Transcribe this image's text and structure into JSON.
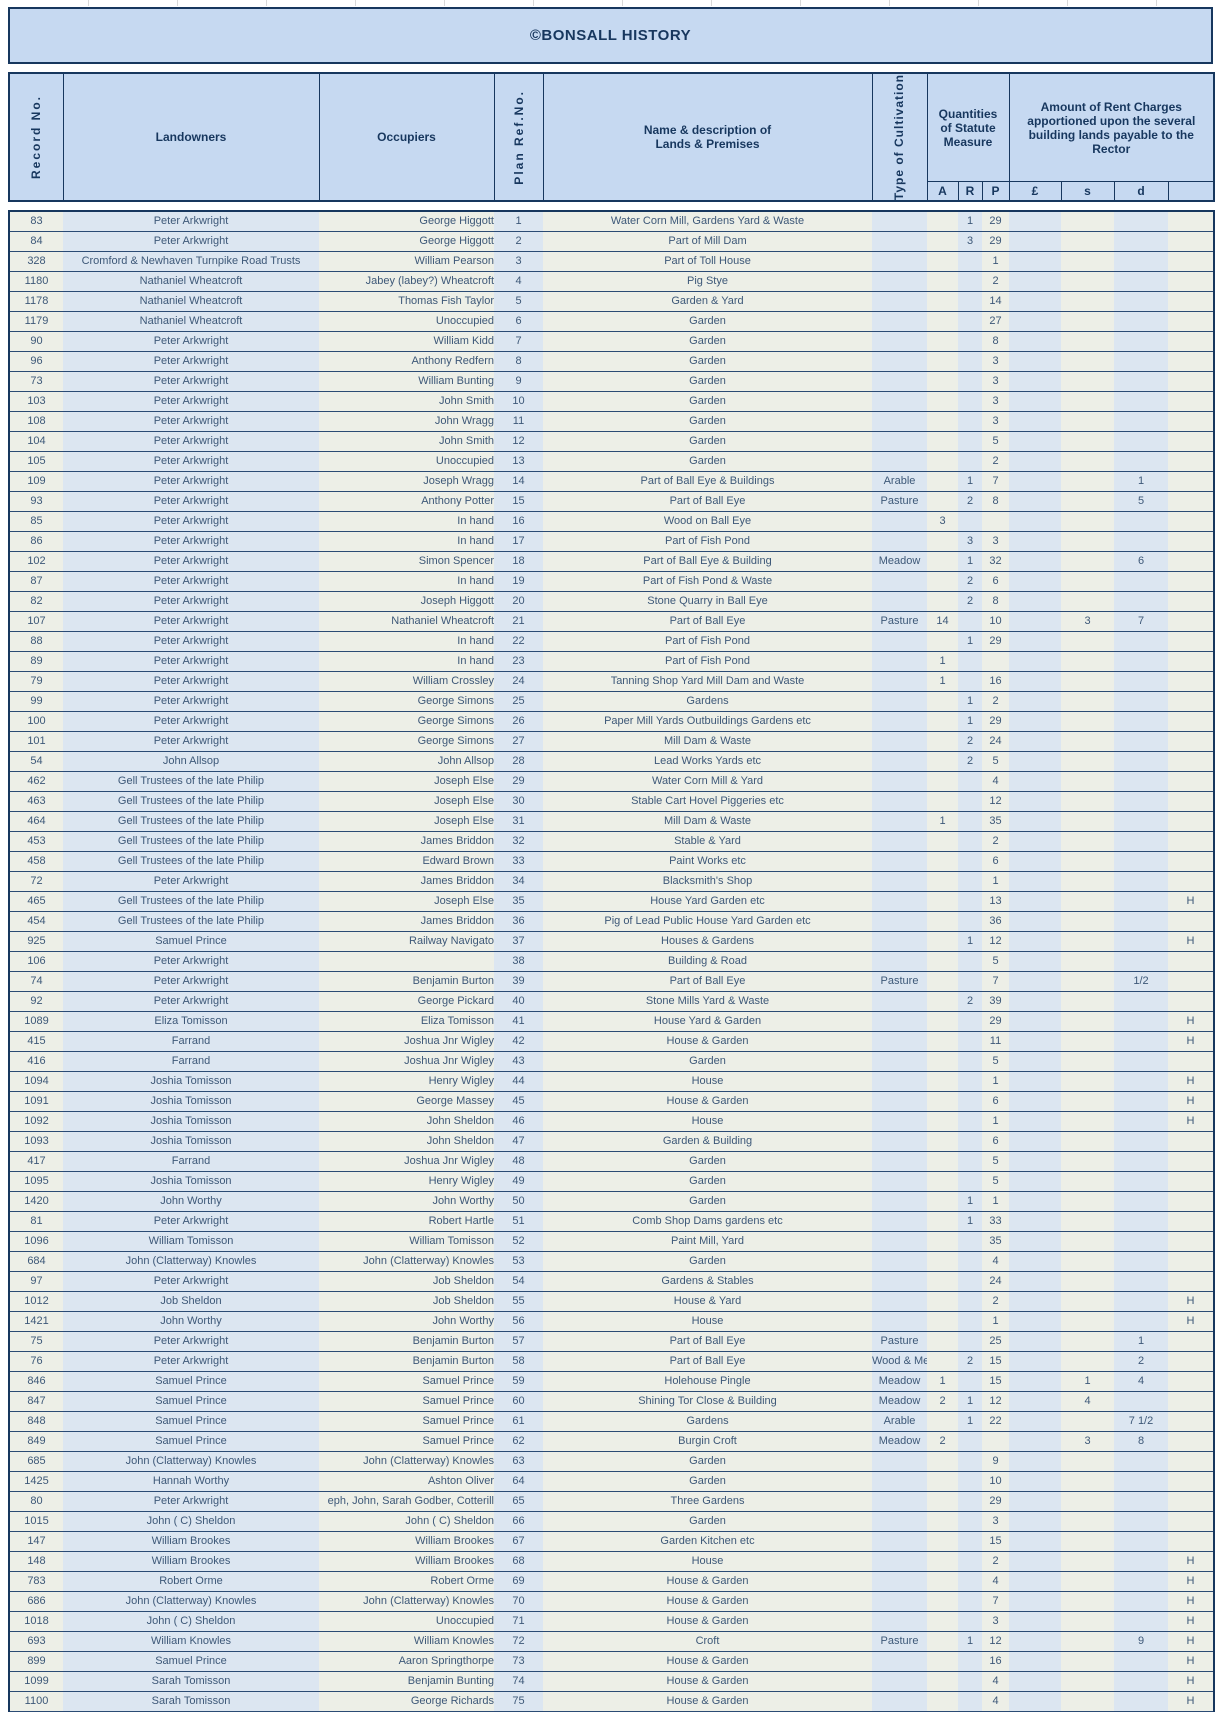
{
  "title": "©BONSALL HISTORY",
  "colors": {
    "banner_bg": "#C6D9F1",
    "band_blue": "#DCE6F1",
    "band_cream": "#EDEFE7",
    "border_navy": "#17375E",
    "body_text": "#3D5878"
  },
  "header": {
    "record": "Record No.",
    "landowners": "Landowners",
    "occupiers": "Occupiers",
    "plan": "Plan Ref.No.",
    "description_line1": "Name & description of",
    "description_line2": "Lands & Premises",
    "cultivation": "Type of Cultivation",
    "quantities": "Quantities of Statute Measure",
    "rent": "Amount of Rent Charges apportioned upon the several building lands payable to the Rector",
    "sub": [
      "A",
      "R",
      "P",
      "£",
      "s",
      "d",
      ""
    ]
  },
  "table": {
    "fields": [
      "record",
      "landowner",
      "occupier",
      "plan",
      "description",
      "cultivation",
      "a",
      "r",
      "p",
      "pounds",
      "shillings",
      "pence",
      "flag"
    ],
    "rows": [
      [
        "83",
        "Peter Arkwright",
        "George Higgott",
        "1",
        "Water Corn Mill, Gardens Yard & Waste",
        "",
        "",
        "1",
        "29",
        "",
        "",
        "",
        ""
      ],
      [
        "84",
        "Peter Arkwright",
        "George Higgott",
        "2",
        "Part of Mill Dam",
        "",
        "",
        "3",
        "29",
        "",
        "",
        "",
        ""
      ],
      [
        "328",
        "Cromford & Newhaven Turnpike Road Trusts",
        "William Pearson",
        "3",
        "Part of Toll House",
        "",
        "",
        "",
        "1",
        "",
        "",
        "",
        ""
      ],
      [
        "1180",
        "Nathaniel Wheatcroft",
        "Jabey (labey?) Wheatcroft",
        "4",
        "Pig Stye",
        "",
        "",
        "",
        "2",
        "",
        "",
        "",
        ""
      ],
      [
        "1178",
        "Nathaniel Wheatcroft",
        "Thomas Fish Taylor",
        "5",
        "Garden & Yard",
        "",
        "",
        "",
        "14",
        "",
        "",
        "",
        ""
      ],
      [
        "1179",
        "Nathaniel Wheatcroft",
        "Unoccupied",
        "6",
        "Garden",
        "",
        "",
        "",
        "27",
        "",
        "",
        "",
        ""
      ],
      [
        "90",
        "Peter Arkwright",
        "William Kidd",
        "7",
        "Garden",
        "",
        "",
        "",
        "8",
        "",
        "",
        "",
        ""
      ],
      [
        "96",
        "Peter Arkwright",
        "Anthony Redfern",
        "8",
        "Garden",
        "",
        "",
        "",
        "3",
        "",
        "",
        "",
        ""
      ],
      [
        "73",
        "Peter Arkwright",
        "William Bunting",
        "9",
        "Garden",
        "",
        "",
        "",
        "3",
        "",
        "",
        "",
        ""
      ],
      [
        "103",
        "Peter Arkwright",
        "John Smith",
        "10",
        "Garden",
        "",
        "",
        "",
        "3",
        "",
        "",
        "",
        ""
      ],
      [
        "108",
        "Peter Arkwright",
        "John Wragg",
        "11",
        "Garden",
        "",
        "",
        "",
        "3",
        "",
        "",
        "",
        ""
      ],
      [
        "104",
        "Peter Arkwright",
        "John Smith",
        "12",
        "Garden",
        "",
        "",
        "",
        "5",
        "",
        "",
        "",
        ""
      ],
      [
        "105",
        "Peter Arkwright",
        "Unoccupied",
        "13",
        "Garden",
        "",
        "",
        "",
        "2",
        "",
        "",
        "",
        ""
      ],
      [
        "109",
        "Peter Arkwright",
        "Joseph Wragg",
        "14",
        "Part of Ball Eye & Buildings",
        "Arable",
        "",
        "1",
        "7",
        "",
        "",
        "1",
        ""
      ],
      [
        "93",
        "Peter Arkwright",
        "Anthony Potter",
        "15",
        "Part of Ball Eye",
        "Pasture",
        "",
        "2",
        "8",
        "",
        "",
        "5",
        ""
      ],
      [
        "85",
        "Peter Arkwright",
        "In hand",
        "16",
        "Wood on Ball Eye",
        "",
        "3",
        "",
        "",
        "",
        "",
        "",
        ""
      ],
      [
        "86",
        "Peter Arkwright",
        "In hand",
        "17",
        "Part of Fish Pond",
        "",
        "",
        "3",
        "3",
        "",
        "",
        "",
        ""
      ],
      [
        "102",
        "Peter Arkwright",
        "Simon Spencer",
        "18",
        "Part of Ball Eye & Building",
        "Meadow",
        "",
        "1",
        "32",
        "",
        "",
        "6",
        ""
      ],
      [
        "87",
        "Peter Arkwright",
        "In hand",
        "19",
        "Part of Fish Pond & Waste",
        "",
        "",
        "2",
        "6",
        "",
        "",
        "",
        ""
      ],
      [
        "82",
        "Peter Arkwright",
        "Joseph Higgott",
        "20",
        "Stone Quarry in Ball Eye",
        "",
        "",
        "2",
        "8",
        "",
        "",
        "",
        ""
      ],
      [
        "107",
        "Peter Arkwright",
        "Nathaniel Wheatcroft",
        "21",
        "Part of Ball Eye",
        "Pasture",
        "14",
        "",
        "10",
        "",
        "3",
        "7",
        ""
      ],
      [
        "88",
        "Peter Arkwright",
        "In hand",
        "22",
        "Part of Fish Pond",
        "",
        "",
        "1",
        "29",
        "",
        "",
        "",
        ""
      ],
      [
        "89",
        "Peter Arkwright",
        "In hand",
        "23",
        "Part of Fish Pond",
        "",
        "1",
        "",
        "",
        "",
        "",
        "",
        ""
      ],
      [
        "79",
        "Peter Arkwright",
        "William Crossley",
        "24",
        "Tanning Shop Yard Mill Dam and Waste",
        "",
        "1",
        "",
        "16",
        "",
        "",
        "",
        ""
      ],
      [
        "99",
        "Peter Arkwright",
        "George Simons",
        "25",
        "Gardens",
        "",
        "",
        "1",
        "2",
        "",
        "",
        "",
        ""
      ],
      [
        "100",
        "Peter Arkwright",
        "George Simons",
        "26",
        "Paper Mill Yards Outbuildings Gardens etc",
        "",
        "",
        "1",
        "29",
        "",
        "",
        "",
        ""
      ],
      [
        "101",
        "Peter Arkwright",
        "George Simons",
        "27",
        "Mill Dam & Waste",
        "",
        "",
        "2",
        "24",
        "",
        "",
        "",
        ""
      ],
      [
        "54",
        "John Allsop",
        "John Allsop",
        "28",
        "Lead Works Yards etc",
        "",
        "",
        "2",
        "5",
        "",
        "",
        "",
        ""
      ],
      [
        "462",
        "Gell Trustees of the late Philip",
        "Joseph Else",
        "29",
        "Water Corn Mill & Yard",
        "",
        "",
        "",
        "4",
        "",
        "",
        "",
        ""
      ],
      [
        "463",
        "Gell Trustees of the late Philip",
        "Joseph Else",
        "30",
        "Stable Cart Hovel Piggeries etc",
        "",
        "",
        "",
        "12",
        "",
        "",
        "",
        ""
      ],
      [
        "464",
        "Gell Trustees of the late Philip",
        "Joseph Else",
        "31",
        "Mill Dam & Waste",
        "",
        "1",
        "",
        "35",
        "",
        "",
        "",
        ""
      ],
      [
        "453",
        "Gell Trustees of the late Philip",
        "James Briddon",
        "32",
        "Stable & Yard",
        "",
        "",
        "",
        "2",
        "",
        "",
        "",
        ""
      ],
      [
        "458",
        "Gell Trustees of the late Philip",
        "Edward Brown",
        "33",
        "Paint Works etc",
        "",
        "",
        "",
        "6",
        "",
        "",
        "",
        ""
      ],
      [
        "72",
        "Peter Arkwright",
        "James Briddon",
        "34",
        "Blacksmith's Shop",
        "",
        "",
        "",
        "1",
        "",
        "",
        "",
        ""
      ],
      [
        "465",
        "Gell Trustees of the late Philip",
        "Joseph Else",
        "35",
        "House Yard Garden etc",
        "",
        "",
        "",
        "13",
        "",
        "",
        "",
        "H"
      ],
      [
        "454",
        "Gell Trustees of the late Philip",
        "James Briddon",
        "36",
        "Pig of Lead Public House Yard Garden etc",
        "",
        "",
        "",
        "36",
        "",
        "",
        "",
        ""
      ],
      [
        "925",
        "Samuel Prince",
        "Railway Navigato",
        "37",
        "Houses & Gardens",
        "",
        "",
        "1",
        "12",
        "",
        "",
        "",
        "H"
      ],
      [
        "106",
        "Peter Arkwright",
        "",
        "38",
        "Building & Road",
        "",
        "",
        "",
        "5",
        "",
        "",
        "",
        ""
      ],
      [
        "74",
        "Peter Arkwright",
        "Benjamin Burton",
        "39",
        "Part of Ball Eye",
        "Pasture",
        "",
        "",
        "7",
        "",
        "",
        "1/2",
        ""
      ],
      [
        "92",
        "Peter Arkwright",
        "George Pickard",
        "40",
        "Stone Mills Yard & Waste",
        "",
        "",
        "2",
        "39",
        "",
        "",
        "",
        ""
      ],
      [
        "1089",
        "Eliza Tomisson",
        "Eliza Tomisson",
        "41",
        "House Yard & Garden",
        "",
        "",
        "",
        "29",
        "",
        "",
        "",
        "H"
      ],
      [
        "415",
        "Farrand",
        "Joshua Jnr Wigley",
        "42",
        "House & Garden",
        "",
        "",
        "",
        "11",
        "",
        "",
        "",
        "H"
      ],
      [
        "416",
        "Farrand",
        "Joshua Jnr Wigley",
        "43",
        "Garden",
        "",
        "",
        "",
        "5",
        "",
        "",
        "",
        ""
      ],
      [
        "1094",
        "Joshia Tomisson",
        "Henry Wigley",
        "44",
        "House",
        "",
        "",
        "",
        "1",
        "",
        "",
        "",
        "H"
      ],
      [
        "1091",
        "Joshia Tomisson",
        "George Massey",
        "45",
        "House & Garden",
        "",
        "",
        "",
        "6",
        "",
        "",
        "",
        "H"
      ],
      [
        "1092",
        "Joshia Tomisson",
        "John Sheldon",
        "46",
        "House",
        "",
        "",
        "",
        "1",
        "",
        "",
        "",
        "H"
      ],
      [
        "1093",
        "Joshia Tomisson",
        "John Sheldon",
        "47",
        "Garden & Building",
        "",
        "",
        "",
        "6",
        "",
        "",
        "",
        ""
      ],
      [
        "417",
        "Farrand",
        "Joshua Jnr Wigley",
        "48",
        "Garden",
        "",
        "",
        "",
        "5",
        "",
        "",
        "",
        ""
      ],
      [
        "1095",
        "Joshia Tomisson",
        "Henry Wigley",
        "49",
        "Garden",
        "",
        "",
        "",
        "5",
        "",
        "",
        "",
        ""
      ],
      [
        "1420",
        "John Worthy",
        "John Worthy",
        "50",
        "Garden",
        "",
        "",
        "1",
        "1",
        "",
        "",
        "",
        ""
      ],
      [
        "81",
        "Peter Arkwright",
        "Robert Hartle",
        "51",
        "Comb Shop Dams gardens etc",
        "",
        "",
        "1",
        "33",
        "",
        "",
        "",
        ""
      ],
      [
        "1096",
        "William Tomisson",
        "William Tomisson",
        "52",
        "Paint Mill, Yard",
        "",
        "",
        "",
        "35",
        "",
        "",
        "",
        ""
      ],
      [
        "684",
        "John (Clatterway) Knowles",
        "John (Clatterway) Knowles",
        "53",
        "Garden",
        "",
        "",
        "",
        "4",
        "",
        "",
        "",
        ""
      ],
      [
        "97",
        "Peter Arkwright",
        "Job Sheldon",
        "54",
        "Gardens & Stables",
        "",
        "",
        "",
        "24",
        "",
        "",
        "",
        ""
      ],
      [
        "1012",
        "Job Sheldon",
        "Job Sheldon",
        "55",
        "House & Yard",
        "",
        "",
        "",
        "2",
        "",
        "",
        "",
        "H"
      ],
      [
        "1421",
        "John Worthy",
        "John Worthy",
        "56",
        "House",
        "",
        "",
        "",
        "1",
        "",
        "",
        "",
        "H"
      ],
      [
        "75",
        "Peter Arkwright",
        "Benjamin Burton",
        "57",
        "Part of Ball Eye",
        "Pasture",
        "",
        "",
        "25",
        "",
        "",
        "1",
        ""
      ],
      [
        "76",
        "Peter Arkwright",
        "Benjamin Burton",
        "58",
        "Part of Ball Eye",
        "Wood & Meadow",
        "",
        "2",
        "15",
        "",
        "",
        "2",
        ""
      ],
      [
        "846",
        "Samuel Prince",
        "Samuel Prince",
        "59",
        "Holehouse Pingle",
        "Meadow",
        "1",
        "",
        "15",
        "",
        "1",
        "4",
        ""
      ],
      [
        "847",
        "Samuel Prince",
        "Samuel Prince",
        "60",
        "Shining Tor Close & Building",
        "Meadow",
        "2",
        "1",
        "12",
        "",
        "4",
        "",
        ""
      ],
      [
        "848",
        "Samuel Prince",
        "Samuel Prince",
        "61",
        "Gardens",
        "Arable",
        "",
        "1",
        "22",
        "",
        "",
        "7 1/2",
        ""
      ],
      [
        "849",
        "Samuel Prince",
        "Samuel Prince",
        "62",
        "Burgin Croft",
        "Meadow",
        "2",
        "",
        "",
        "",
        "3",
        "8",
        ""
      ],
      [
        "685",
        "John (Clatterway) Knowles",
        "John (Clatterway) Knowles",
        "63",
        "Garden",
        "",
        "",
        "",
        "9",
        "",
        "",
        "",
        ""
      ],
      [
        "1425",
        "Hannah Worthy",
        "Ashton Oliver",
        "64",
        "Garden",
        "",
        "",
        "",
        "10",
        "",
        "",
        "",
        ""
      ],
      [
        "80",
        "Peter Arkwright",
        "eph, John, Sarah Godber, Cotterill",
        "65",
        "Three Gardens",
        "",
        "",
        "",
        "29",
        "",
        "",
        "",
        ""
      ],
      [
        "1015",
        "John ( C) Sheldon",
        "John ( C) Sheldon",
        "66",
        "Garden",
        "",
        "",
        "",
        "3",
        "",
        "",
        "",
        ""
      ],
      [
        "147",
        "William Brookes",
        "William Brookes",
        "67",
        "Garden Kitchen etc",
        "",
        "",
        "",
        "15",
        "",
        "",
        "",
        ""
      ],
      [
        "148",
        "William Brookes",
        "William Brookes",
        "68",
        "House",
        "",
        "",
        "",
        "2",
        "",
        "",
        "",
        "H"
      ],
      [
        "783",
        "Robert Orme",
        "Robert Orme",
        "69",
        "House & Garden",
        "",
        "",
        "",
        "4",
        "",
        "",
        "",
        "H"
      ],
      [
        "686",
        "John (Clatterway) Knowles",
        "John (Clatterway) Knowles",
        "70",
        "House & Garden",
        "",
        "",
        "",
        "7",
        "",
        "",
        "",
        "H"
      ],
      [
        "1018",
        "John ( C) Sheldon",
        "Unoccupied",
        "71",
        "House & Garden",
        "",
        "",
        "",
        "3",
        "",
        "",
        "",
        "H"
      ],
      [
        "693",
        "William Knowles",
        "William Knowles",
        "72",
        "Croft",
        "Pasture",
        "",
        "1",
        "12",
        "",
        "",
        "9",
        "H"
      ],
      [
        "899",
        "Samuel Prince",
        "Aaron Springthorpe",
        "73",
        "House & Garden",
        "",
        "",
        "",
        "16",
        "",
        "",
        "",
        "H"
      ],
      [
        "1099",
        "Sarah Tomisson",
        "Benjamin Bunting",
        "74",
        "House & Garden",
        "",
        "",
        "",
        "4",
        "",
        "",
        "",
        "H"
      ],
      [
        "1100",
        "Sarah Tomisson",
        "George Richards",
        "75",
        "House & Garden",
        "",
        "",
        "",
        "4",
        "",
        "",
        "",
        "H"
      ]
    ]
  }
}
